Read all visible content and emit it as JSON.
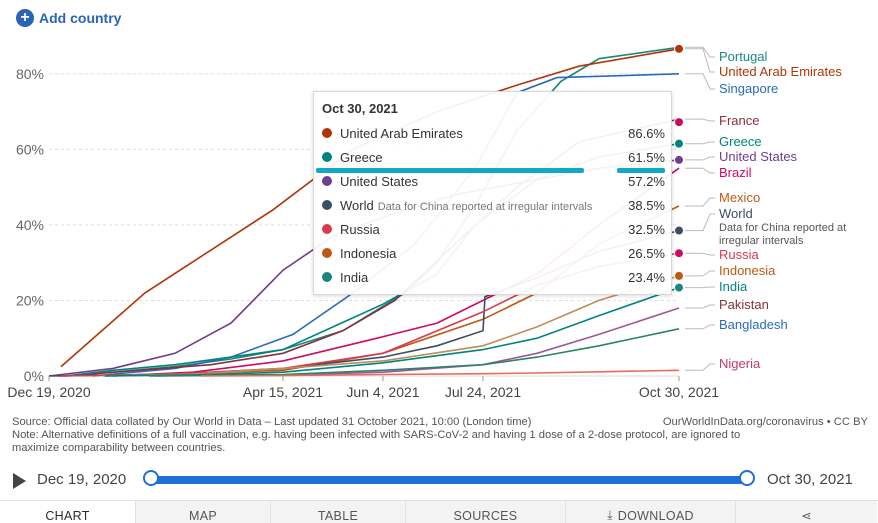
{
  "add_country": {
    "label": "Add country"
  },
  "chart_data": {
    "type": "line",
    "y_ticks": [
      "0%",
      "20%",
      "40%",
      "60%",
      "80%"
    ],
    "ylim": [
      0,
      90
    ],
    "x_ticks": [
      "Dec 19, 2020",
      "Apr 15, 2021",
      "Jun 4, 2021",
      "Jul 24, 2021",
      "Oct 30, 2021"
    ],
    "xlim": [
      "2020-12-19",
      "2021-10-30"
    ],
    "grid": true,
    "series": [
      {
        "name": "Portugal",
        "color": "#19877f",
        "points": [
          [
            "2020-12-27",
            0
          ],
          [
            "2021-01-20",
            1
          ],
          [
            "2021-02-20",
            2.5
          ],
          [
            "2021-03-20",
            4.5
          ],
          [
            "2021-04-15",
            7
          ],
          [
            "2021-05-15",
            12
          ],
          [
            "2021-06-15",
            22
          ],
          [
            "2021-07-01",
            30
          ],
          [
            "2021-07-20",
            45
          ],
          [
            "2021-08-10",
            65
          ],
          [
            "2021-09-01",
            78
          ],
          [
            "2021-09-20",
            84
          ],
          [
            "2021-10-30",
            87
          ]
        ]
      },
      {
        "name": "United Arab Emirates",
        "color": "#b13507",
        "points": [
          [
            "2020-12-25",
            2.5
          ],
          [
            "2021-02-05",
            22
          ],
          [
            "2021-04-10",
            44
          ],
          [
            "2021-05-20",
            60
          ],
          [
            "2021-07-01",
            70
          ],
          [
            "2021-08-10",
            77
          ],
          [
            "2021-09-10",
            82
          ],
          [
            "2021-10-30",
            86.6
          ]
        ]
      },
      {
        "name": "Singapore",
        "color": "#286bbb",
        "points": [
          [
            "2021-01-10",
            0
          ],
          [
            "2021-02-20",
            2
          ],
          [
            "2021-03-20",
            5
          ],
          [
            "2021-04-20",
            11
          ],
          [
            "2021-05-20",
            22
          ],
          [
            "2021-06-20",
            35
          ],
          [
            "2021-07-20",
            55
          ],
          [
            "2021-08-10",
            75
          ],
          [
            "2021-08-30",
            79
          ],
          [
            "2021-10-30",
            80
          ]
        ]
      },
      {
        "name": "France",
        "color": "#883039",
        "points": [
          [
            "2020-12-27",
            0
          ],
          [
            "2021-02-01",
            1.5
          ],
          [
            "2021-03-10",
            3
          ],
          [
            "2021-04-15",
            6
          ],
          [
            "2021-05-15",
            12
          ],
          [
            "2021-06-10",
            20
          ],
          [
            "2021-07-10",
            35
          ],
          [
            "2021-08-10",
            50
          ],
          [
            "2021-09-10",
            62
          ],
          [
            "2021-10-30",
            68
          ]
        ]
      },
      {
        "name": "Greece",
        "color": "#00847e",
        "points": [
          [
            "2020-12-27",
            0
          ],
          [
            "2021-01-20",
            1.5
          ],
          [
            "2021-02-20",
            3
          ],
          [
            "2021-03-20",
            5
          ],
          [
            "2021-04-15",
            7
          ],
          [
            "2021-05-10",
            13
          ],
          [
            "2021-06-04",
            19
          ],
          [
            "2021-07-01",
            27
          ],
          [
            "2021-07-20",
            40
          ],
          [
            "2021-08-20",
            52
          ],
          [
            "2021-09-20",
            58
          ],
          [
            "2021-10-30",
            61.5
          ]
        ]
      },
      {
        "name": "United States",
        "color": "#6d3e91",
        "points": [
          [
            "2020-12-19",
            0
          ],
          [
            "2021-01-20",
            2
          ],
          [
            "2021-02-20",
            6
          ],
          [
            "2021-03-20",
            14
          ],
          [
            "2021-04-15",
            28
          ],
          [
            "2021-05-10",
            37
          ],
          [
            "2021-06-04",
            42
          ],
          [
            "2021-07-10",
            48
          ],
          [
            "2021-08-20",
            52
          ],
          [
            "2021-09-20",
            55
          ],
          [
            "2021-10-30",
            57.2
          ]
        ]
      },
      {
        "name": "Brazil",
        "color": "#cf0a66",
        "points": [
          [
            "2021-01-20",
            0
          ],
          [
            "2021-03-01",
            1
          ],
          [
            "2021-04-15",
            4
          ],
          [
            "2021-06-01",
            10
          ],
          [
            "2021-07-01",
            14
          ],
          [
            "2021-07-24",
            20
          ],
          [
            "2021-08-20",
            27
          ],
          [
            "2021-09-20",
            40
          ],
          [
            "2021-10-30",
            55
          ]
        ]
      },
      {
        "name": "Mexico",
        "color": "#be5915",
        "points": [
          [
            "2020-12-24",
            0
          ],
          [
            "2021-02-20",
            0.5
          ],
          [
            "2021-04-15",
            1.5
          ],
          [
            "2021-06-04",
            6
          ],
          [
            "2021-07-24",
            15
          ],
          [
            "2021-08-20",
            22
          ],
          [
            "2021-09-20",
            35
          ],
          [
            "2021-10-30",
            45
          ]
        ]
      },
      {
        "name": "World",
        "note": "Data for China reported at irregular intervals",
        "color": "#3c4e66",
        "points": [
          [
            "2020-12-19",
            0
          ],
          [
            "2021-02-20",
            0.5
          ],
          [
            "2021-04-15",
            2
          ],
          [
            "2021-06-04",
            5
          ],
          [
            "2021-07-01",
            8
          ],
          [
            "2021-07-24",
            12
          ],
          [
            "2021-07-25",
            21
          ],
          [
            "2021-08-20",
            26
          ],
          [
            "2021-09-20",
            33
          ],
          [
            "2021-10-30",
            38.5
          ]
        ]
      },
      {
        "name": "Russia",
        "color": "#d73c50",
        "points": [
          [
            "2020-12-25",
            0
          ],
          [
            "2021-02-20",
            0.5
          ],
          [
            "2021-04-15",
            2
          ],
          [
            "2021-06-04",
            6
          ],
          [
            "2021-07-24",
            17
          ],
          [
            "2021-08-20",
            24
          ],
          [
            "2021-09-20",
            29
          ],
          [
            "2021-10-30",
            32.5
          ]
        ]
      },
      {
        "name": "Indonesia",
        "color": "#bc8e5a",
        "points": [
          [
            "2021-01-15",
            0
          ],
          [
            "2021-03-01",
            0.5
          ],
          [
            "2021-04-15",
            2
          ],
          [
            "2021-06-04",
            4
          ],
          [
            "2021-07-24",
            8
          ],
          [
            "2021-08-20",
            13
          ],
          [
            "2021-09-20",
            20
          ],
          [
            "2021-10-30",
            26.5
          ]
        ]
      },
      {
        "name": "India",
        "color": "#00847e",
        "points": [
          [
            "2021-01-16",
            0
          ],
          [
            "2021-03-01",
            0.3
          ],
          [
            "2021-04-15",
            1
          ],
          [
            "2021-06-04",
            3.5
          ],
          [
            "2021-07-24",
            7
          ],
          [
            "2021-08-20",
            10
          ],
          [
            "2021-09-20",
            16
          ],
          [
            "2021-10-30",
            23.4
          ]
        ]
      },
      {
        "name": "Pakistan",
        "color": "#a2559c",
        "points": [
          [
            "2021-02-10",
            0
          ],
          [
            "2021-04-15",
            0.2
          ],
          [
            "2021-06-04",
            1
          ],
          [
            "2021-07-24",
            3
          ],
          [
            "2021-08-20",
            6
          ],
          [
            "2021-09-20",
            11
          ],
          [
            "2021-10-30",
            18
          ]
        ]
      },
      {
        "name": "Bangladesh",
        "color": "#2c8465",
        "points": [
          [
            "2021-02-07",
            0
          ],
          [
            "2021-04-15",
            0.4
          ],
          [
            "2021-06-04",
            1.5
          ],
          [
            "2021-07-24",
            3
          ],
          [
            "2021-08-20",
            5
          ],
          [
            "2021-09-20",
            8
          ],
          [
            "2021-10-30",
            12.5
          ]
        ]
      },
      {
        "name": "Nigeria",
        "color": "#e56e5a",
        "points": [
          [
            "2021-03-05",
            0
          ],
          [
            "2021-04-15",
            0.1
          ],
          [
            "2021-06-04",
            0.4
          ],
          [
            "2021-07-24",
            0.6
          ],
          [
            "2021-08-20",
            0.8
          ],
          [
            "2021-09-20",
            1.1
          ],
          [
            "2021-10-30",
            1.5
          ]
        ]
      }
    ],
    "labels": [
      {
        "text": "Portugal",
        "color": "#19877f"
      },
      {
        "text": "United Arab Emirates",
        "color": "#b13507"
      },
      {
        "text": "Singapore",
        "color": "#286bbb"
      },
      {
        "text": "France",
        "color": "#883039"
      },
      {
        "text": "Greece",
        "color": "#00847e"
      },
      {
        "text": "United States",
        "color": "#6d3e91"
      },
      {
        "text": "Brazil",
        "color": "#cf0a66"
      },
      {
        "text": "Mexico",
        "color": "#be5915"
      },
      {
        "text": "World",
        "color": "#3c4e66"
      },
      {
        "text": "Data for China reported at",
        "color": "#555555"
      },
      {
        "text": "irregular intervals",
        "color": "#555555"
      },
      {
        "text": "Russia",
        "color": "#d73c50"
      },
      {
        "text": "Indonesia",
        "color": "#be5915"
      },
      {
        "text": "India",
        "color": "#00847e"
      },
      {
        "text": "Pakistan",
        "color": "#883039"
      },
      {
        "text": "Bangladesh",
        "color": "#286bbb"
      },
      {
        "text": "Nigeria",
        "color": "#be3b68"
      }
    ]
  },
  "tooltip": {
    "date": "Oct 30, 2021",
    "rows": [
      {
        "name": "United Arab Emirates",
        "value": "86.6%",
        "color": "#b13507"
      },
      {
        "name": "Greece",
        "value": "61.5%",
        "color": "#00847e"
      },
      {
        "name": "United States",
        "value": "57.2%",
        "color": "#6d3e91"
      },
      {
        "name": "World",
        "note": "Data for China reported at irregular intervals",
        "value": "38.5%",
        "color": "#3c4e66"
      },
      {
        "name": "Russia",
        "value": "32.5%",
        "color": "#d73c50"
      },
      {
        "name": "Indonesia",
        "value": "26.5%",
        "color": "#be5915"
      },
      {
        "name": "India",
        "value": "23.4%",
        "color": "#19877f"
      }
    ]
  },
  "footer": {
    "source": "Source: Official data collated by Our World in Data – Last updated 31 October 2021, 10:00 (London time)",
    "credit": "OurWorldInData.org/coronavirus • CC BY",
    "note1": "Note: Alternative definitions of a full vaccination, e.g. having been infected with SARS-CoV-2 and having 1 dose of a 2-dose protocol, are ignored to",
    "note2": "maximize comparability between countries."
  },
  "timeline": {
    "start": "Dec 19, 2020",
    "end": "Oct 30, 2021"
  },
  "tabs": {
    "chart": "CHART",
    "map": "MAP",
    "table": "TABLE",
    "sources": "SOURCES",
    "download": "DOWNLOAD"
  }
}
